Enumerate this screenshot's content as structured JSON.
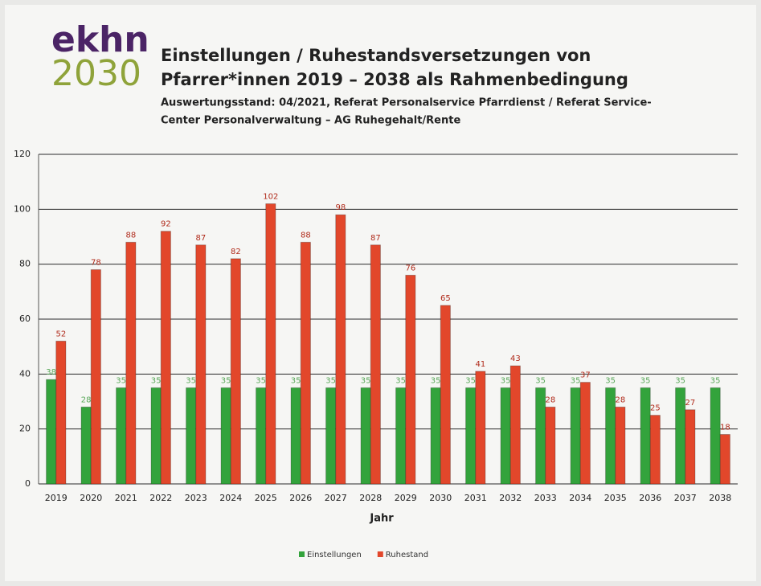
{
  "chart_data": {
    "type": "bar",
    "logo_top": "ekhn",
    "logo_bottom": "2030",
    "title": [
      "Einstellungen / Ruhestandsversetzungen von",
      "Pfarrer*innen  2019 – 2038 als Rahmenbedingung"
    ],
    "subtitle": [
      "Auswertungsstand: 04/2021, Referat Personalservice Pfarrdienst / Referat Service-",
      "Center Personalverwaltung – AG Ruhegehalt/Rente"
    ],
    "x_label": "Jahr",
    "categories": [
      "2019",
      "2020",
      "2021",
      "2022",
      "2023",
      "2024",
      "2025",
      "2026",
      "2027",
      "2028",
      "2029",
      "2030",
      "2031",
      "2032",
      "2033",
      "2034",
      "2035",
      "2036",
      "2037",
      "2038"
    ],
    "series": [
      {
        "name": "Einstellungen",
        "color": "#33a33c",
        "values": [
          38,
          28,
          35,
          35,
          35,
          35,
          35,
          35,
          35,
          35,
          35,
          35,
          35,
          35,
          35,
          35,
          35,
          35,
          35,
          35
        ]
      },
      {
        "name": "Ruhestand",
        "color": "#e2472b",
        "values": [
          52,
          78,
          88,
          92,
          87,
          82,
          102,
          88,
          98,
          87,
          76,
          65,
          41,
          43,
          28,
          37,
          28,
          25,
          27,
          18
        ]
      }
    ],
    "ylim": [
      0,
      120
    ],
    "yticks": [
      0,
      20,
      40,
      60,
      80,
      100,
      120
    ],
    "grid": true,
    "legend": "bottom"
  }
}
